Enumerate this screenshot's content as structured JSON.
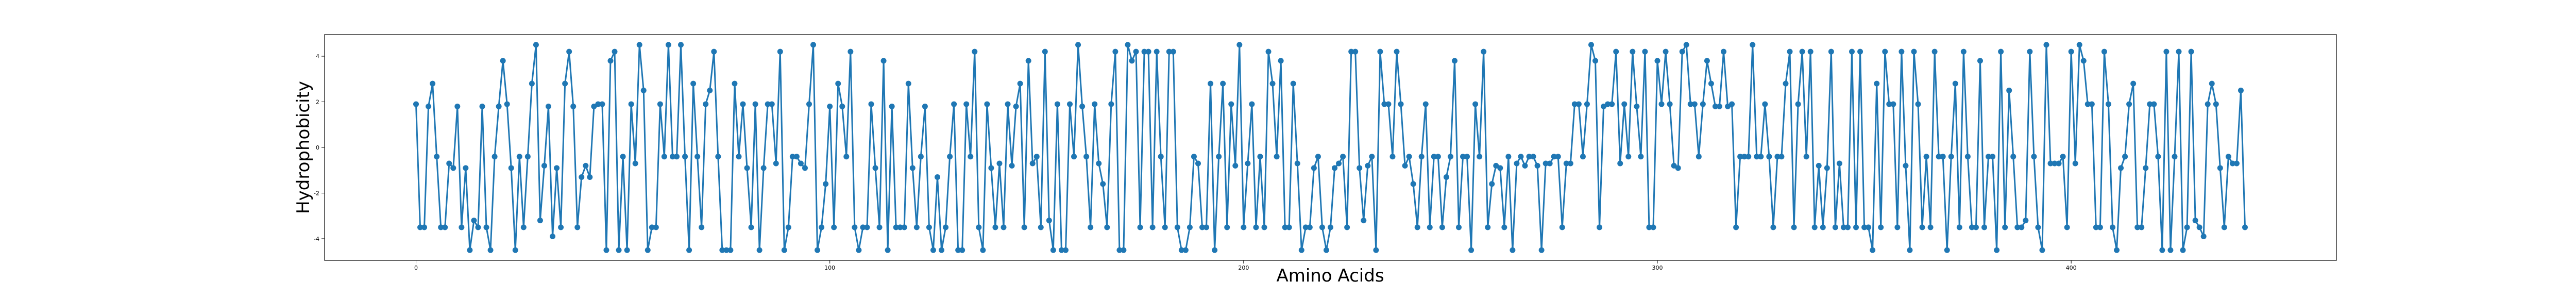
{
  "chart_data": {
    "type": "line",
    "xlabel": "Amino Acids",
    "ylabel": "Hydrophobicity",
    "color": "#1f77b4",
    "marker": true,
    "grid": false,
    "xlim": [
      -22.1,
      464.1
    ],
    "xticks": [
      0,
      100,
      200,
      300,
      400
    ],
    "ylim": [
      -4.95,
      4.95
    ],
    "yticks": [
      4,
      2,
      0,
      -2,
      -4
    ],
    "values": [
      1.9,
      -3.5,
      -3.5,
      1.8,
      2.8,
      -0.4,
      -3.5,
      -3.5,
      -0.7,
      -0.9,
      1.8,
      -3.5,
      -0.9,
      -4.5,
      -3.2,
      -3.5,
      1.8,
      -3.5,
      -4.5,
      -0.4,
      1.8,
      3.8,
      1.9,
      -0.9,
      -4.5,
      -0.4,
      -3.5,
      -0.4,
      2.8,
      4.5,
      -3.2,
      -0.8,
      1.8,
      -3.9,
      -0.9,
      -3.5,
      2.8,
      4.2,
      1.8,
      -3.5,
      -1.3,
      -0.8,
      -1.3,
      1.8,
      1.9,
      1.9,
      -4.5,
      3.8,
      4.2,
      -4.5,
      -0.4,
      -4.5,
      1.9,
      -0.7,
      4.5,
      2.5,
      -4.5,
      -3.5,
      -3.5,
      1.9,
      -0.4,
      4.5,
      -0.4,
      -0.4,
      4.5,
      -0.4,
      -4.5,
      2.8,
      -0.4,
      -3.5,
      1.9,
      2.5,
      4.2,
      -0.4,
      -4.5,
      -4.5,
      -4.5,
      2.8,
      -0.4,
      1.9,
      -0.9,
      -3.5,
      1.9,
      -4.5,
      -0.9,
      1.9,
      1.9,
      -0.7,
      4.2,
      -4.5,
      -3.5,
      -0.4,
      -0.4,
      -0.7,
      -0.9,
      1.9,
      4.5,
      -4.5,
      -3.5,
      -1.6,
      1.8,
      -3.5,
      2.8,
      1.8,
      -0.4,
      4.2,
      -3.5,
      -4.5,
      -3.5,
      -3.5,
      1.9,
      -0.9,
      -3.5,
      3.8,
      -4.5,
      1.8,
      -3.5,
      -3.5,
      -3.5,
      2.8,
      -0.9,
      -3.5,
      -0.4,
      1.8,
      -3.5,
      -4.5,
      -1.3,
      -4.5,
      -3.5,
      -0.4,
      1.9,
      -4.5,
      -4.5,
      1.9,
      -0.4,
      4.2,
      -3.5,
      -4.5,
      1.9,
      -0.9,
      -3.5,
      -0.7,
      -3.5,
      1.9,
      -0.8,
      1.8,
      2.8,
      -3.5,
      3.8,
      -0.7,
      -0.4,
      -3.5,
      4.2,
      -3.2,
      -4.5,
      1.9,
      -4.5,
      -4.5,
      1.9,
      -0.4,
      4.5,
      1.8,
      -0.4,
      -3.5,
      1.9,
      -0.7,
      -1.6,
      -3.5,
      1.9,
      4.2,
      -4.5,
      -4.5,
      4.5,
      3.8,
      4.2,
      -3.5,
      4.2,
      4.2,
      -3.5,
      4.2,
      -0.4,
      -3.5,
      4.2,
      4.2,
      -3.5,
      -4.5,
      -4.5,
      -3.5,
      -0.4,
      -0.7,
      -3.5,
      -3.5,
      2.8,
      -4.5,
      -0.4,
      2.8,
      -3.5,
      1.9,
      -0.8,
      4.5,
      -3.5,
      -0.7,
      1.9,
      -3.5,
      -0.4,
      -3.5,
      4.2,
      2.8,
      -0.4,
      3.8,
      -3.5,
      -3.5,
      2.8,
      -0.7,
      -4.5,
      -3.5,
      -3.5,
      -0.9,
      -0.4,
      -3.5,
      -4.5,
      -3.5,
      -0.9,
      -0.7,
      -0.4,
      -3.5,
      4.2,
      4.2,
      -0.9,
      -3.2,
      -0.8,
      -0.4,
      -4.5,
      4.2,
      1.9,
      1.9,
      -0.4,
      4.2,
      1.9,
      -0.8,
      -0.4,
      -1.6,
      -3.5,
      -0.4,
      1.9,
      -3.5,
      -0.4,
      -0.4,
      -3.5,
      -1.3,
      -0.4,
      3.8,
      -3.5,
      -0.4,
      -0.4,
      -4.5,
      1.9,
      -0.4,
      4.2,
      -3.5,
      -1.6,
      -0.8,
      -0.9,
      -3.5,
      -0.4,
      -4.5,
      -0.7,
      -0.4,
      -0.8,
      -0.4,
      -0.4,
      -0.8,
      -4.5,
      -0.7,
      -0.7,
      -0.4,
      -0.4,
      -3.5,
      -0.7,
      -0.7,
      1.9,
      1.9,
      -0.4,
      1.9,
      4.5,
      3.8,
      -3.5,
      1.8,
      1.9,
      1.9,
      4.2,
      -0.7,
      1.9,
      -0.4,
      4.2,
      1.8,
      -0.4,
      4.2,
      -3.5,
      -3.5,
      3.8,
      1.9,
      4.2,
      1.9,
      -0.8,
      -0.9,
      4.2,
      4.5,
      1.9,
      1.9,
      -0.4,
      1.9,
      3.8,
      2.8,
      1.8,
      1.8,
      4.2,
      1.8,
      1.9,
      -3.5,
      -0.4,
      -0.4,
      -0.4,
      4.5,
      -0.4,
      -0.4,
      1.9,
      -0.4,
      -3.5,
      -0.4,
      -0.4,
      2.8,
      4.2,
      -3.5,
      1.9,
      4.2,
      -0.4,
      4.2,
      -3.5,
      -0.8,
      -3.5,
      -0.9,
      4.2,
      -3.5,
      -0.7,
      -3.5,
      -3.5,
      4.2,
      -3.5,
      4.2,
      -3.5,
      -3.5,
      -4.5,
      2.8,
      -3.5,
      4.2,
      1.9,
      1.9,
      -3.5,
      4.2,
      -0.8,
      -4.5,
      4.2,
      1.9,
      -3.5,
      -0.4,
      -3.5,
      4.2,
      -0.4,
      -0.4,
      -4.5,
      -0.4,
      2.8,
      -3.5,
      4.2,
      -0.4,
      -3.5,
      -3.5,
      3.8,
      -3.5,
      -0.4,
      -0.4,
      -4.5,
      4.2,
      -3.5,
      2.5,
      -0.4,
      -3.5,
      -3.5,
      -3.2,
      4.2,
      -0.4,
      -3.5,
      -4.5,
      4.5,
      -0.7,
      -0.7,
      -0.7,
      -0.4,
      -3.5,
      4.2,
      -0.7,
      4.5,
      3.8,
      1.9,
      1.9,
      -3.5,
      -3.5,
      4.2,
      1.9,
      -3.5,
      -4.5,
      -0.9,
      -0.4,
      1.9,
      2.8,
      -3.5,
      -3.5,
      -0.9,
      1.9,
      1.9,
      -0.4,
      -4.5,
      4.2,
      -4.5,
      -0.4,
      4.2,
      -4.5,
      -3.5,
      4.2,
      -3.2,
      -3.5,
      -3.9,
      1.9,
      2.8,
      1.9,
      -0.9,
      -3.5,
      -0.4,
      -0.7,
      -0.7,
      2.5,
      -3.5
    ]
  }
}
